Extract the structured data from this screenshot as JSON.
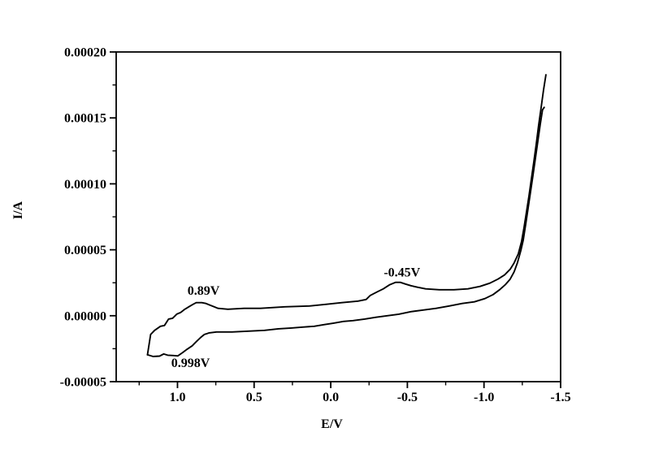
{
  "figure": {
    "background": "#ffffff",
    "line_color": "#000000",
    "axis_color": "#000000"
  },
  "chart_data": {
    "type": "line",
    "title": "",
    "xlabel": "E/V",
    "ylabel": "I/A",
    "grid": false,
    "legend": false,
    "x_axis": {
      "left_value": 1.4,
      "right_value": -1.5,
      "reversed": true,
      "major_ticks": [
        1.0,
        0.5,
        0.0,
        -0.5,
        -1.0,
        -1.5
      ],
      "tick_labels": [
        "1.0",
        "0.5",
        "0.0",
        "-0.5",
        "-1.0",
        "-1.5"
      ],
      "minor_ticks": [
        1.25,
        0.75,
        0.25,
        -0.25,
        -0.75,
        -1.25
      ]
    },
    "y_axis": {
      "min": -5e-05,
      "max": 0.0002,
      "major_ticks": [
        0.0002,
        0.00015,
        0.0001,
        5e-05,
        0.0,
        -5e-05
      ],
      "tick_labels": [
        "0.00020",
        "0.00015",
        "0.00010",
        "0.00005",
        "0.00000",
        "-0.00005"
      ],
      "minor_ticks": [
        0.000175,
        0.000125,
        7.5e-05,
        2.5e-05,
        -2.5e-05
      ]
    },
    "annotations": [
      {
        "text": "0.89V",
        "E": 0.83,
        "I": 1.95e-05
      },
      {
        "text": "0.998V",
        "E": 0.915,
        "I": -3.52e-05
      },
      {
        "text": "-0.45V",
        "E": -0.465,
        "I": 3.33e-05
      }
    ],
    "series": [
      {
        "name": "return-sweep-upper-branch",
        "points": [
          [
            1.196,
            -2.96e-05
          ],
          [
            1.175,
            -1.42e-05
          ],
          [
            1.149,
            -1.11e-05
          ],
          [
            1.111,
            -8e-06
          ],
          [
            1.085,
            -7.4e-06
          ],
          [
            1.058,
            -2.5e-06
          ],
          [
            1.032,
            -1.9e-06
          ],
          [
            1.005,
            1.2e-06
          ],
          [
            0.979,
            2.5e-06
          ],
          [
            0.952,
            4.9e-06
          ],
          [
            0.926,
            6.8e-06
          ],
          [
            0.899,
            8.6e-06
          ],
          [
            0.878,
            9.9e-06
          ],
          [
            0.841,
            9.9e-06
          ],
          [
            0.814,
            9.3e-06
          ],
          [
            0.788,
            8e-06
          ],
          [
            0.761,
            6.8e-06
          ],
          [
            0.735,
            5.6e-06
          ],
          [
            0.671,
            4.9e-06
          ],
          [
            0.565,
            5.6e-06
          ],
          [
            0.459,
            5.6e-06
          ],
          [
            0.299,
            6.8e-06
          ],
          [
            0.14,
            7.4e-06
          ],
          [
            0.034,
            8.6e-06
          ],
          [
            -0.072,
            9.9e-06
          ],
          [
            -0.178,
            1.11e-05
          ],
          [
            -0.231,
            1.23e-05
          ],
          [
            -0.258,
            1.54e-05
          ],
          [
            -0.3,
            1.79e-05
          ],
          [
            -0.343,
            2.04e-05
          ],
          [
            -0.385,
            2.35e-05
          ],
          [
            -0.422,
            2.53e-05
          ],
          [
            -0.454,
            2.53e-05
          ],
          [
            -0.486,
            2.41e-05
          ],
          [
            -0.523,
            2.28e-05
          ],
          [
            -0.566,
            2.16e-05
          ],
          [
            -0.619,
            2.04e-05
          ],
          [
            -0.709,
            1.97e-05
          ],
          [
            -0.804,
            1.97e-05
          ],
          [
            -0.895,
            2.04e-05
          ],
          [
            -0.974,
            2.22e-05
          ],
          [
            -1.038,
            2.47e-05
          ],
          [
            -1.091,
            2.78e-05
          ],
          [
            -1.134,
            3.09e-05
          ],
          [
            -1.171,
            3.52e-05
          ],
          [
            -1.197,
            4.01e-05
          ],
          [
            -1.224,
            4.69e-05
          ],
          [
            -1.245,
            5.62e-05
          ],
          [
            -1.261,
            6.67e-05
          ],
          [
            -1.277,
            7.84e-05
          ],
          [
            -1.293,
            9.07e-05
          ],
          [
            -1.309,
            0.0001037
          ],
          [
            -1.325,
            0.0001166
          ],
          [
            -1.341,
            0.0001302
          ],
          [
            -1.356,
            0.0001438
          ],
          [
            -1.372,
            0.0001573
          ],
          [
            -1.388,
            0.0001709
          ],
          [
            -1.404,
            0.0001827
          ]
        ]
      },
      {
        "name": "forward-sweep-lower-branch",
        "points": [
          [
            1.196,
            -2.96e-05
          ],
          [
            1.159,
            -3.09e-05
          ],
          [
            1.117,
            -3.06e-05
          ],
          [
            1.09,
            -2.9e-05
          ],
          [
            1.064,
            -2.99e-05
          ],
          [
            1.027,
            -3.02e-05
          ],
          [
            0.998,
            -3.05e-05
          ],
          [
            0.968,
            -2.81e-05
          ],
          [
            0.936,
            -2.53e-05
          ],
          [
            0.904,
            -2.28e-05
          ],
          [
            0.878,
            -1.97e-05
          ],
          [
            0.851,
            -1.67e-05
          ],
          [
            0.825,
            -1.42e-05
          ],
          [
            0.793,
            -1.3e-05
          ],
          [
            0.745,
            -1.23e-05
          ],
          [
            0.644,
            -1.23e-05
          ],
          [
            0.538,
            -1.17e-05
          ],
          [
            0.432,
            -1.11e-05
          ],
          [
            0.342,
            -9.9e-06
          ],
          [
            0.257,
            -9.3e-06
          ],
          [
            0.183,
            -8.6e-06
          ],
          [
            0.108,
            -8e-06
          ],
          [
            0.045,
            -6.8e-06
          ],
          [
            -0.019,
            -5.6e-06
          ],
          [
            -0.083,
            -4.3e-06
          ],
          [
            -0.146,
            -3.7e-06
          ],
          [
            -0.221,
            -2.5e-06
          ],
          [
            -0.295,
            -1.2e-06
          ],
          [
            -0.369,
            0.0
          ],
          [
            -0.444,
            1.2e-06
          ],
          [
            -0.523,
            3.1e-06
          ],
          [
            -0.603,
            4.3e-06
          ],
          [
            -0.688,
            5.6e-06
          ],
          [
            -0.773,
            7.4e-06
          ],
          [
            -0.858,
            9.3e-06
          ],
          [
            -0.937,
            1.05e-05
          ],
          [
            -1.006,
            1.3e-05
          ],
          [
            -1.059,
            1.6e-05
          ],
          [
            -1.102,
            1.97e-05
          ],
          [
            -1.139,
            2.35e-05
          ],
          [
            -1.171,
            2.78e-05
          ],
          [
            -1.197,
            3.33e-05
          ],
          [
            -1.218,
            4.01e-05
          ],
          [
            -1.24,
            4.94e-05
          ],
          [
            -1.256,
            5.74e-05
          ],
          [
            -1.271,
            6.85e-05
          ],
          [
            -1.287,
            8.08e-05
          ],
          [
            -1.303,
            9.32e-05
          ],
          [
            -1.319,
            0.0001061
          ],
          [
            -1.335,
            0.0001191
          ],
          [
            -1.351,
            0.000132
          ],
          [
            -1.367,
            0.000145
          ],
          [
            -1.382,
            0.0001561
          ],
          [
            -1.393,
            0.000158
          ]
        ]
      }
    ]
  }
}
